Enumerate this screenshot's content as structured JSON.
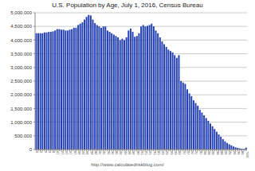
{
  "chart_data": {
    "type": "bar",
    "title": "U.S. Population by Age, July 1, 2016, Census Bureau",
    "annotations": [
      "http://www.calculatedriskblog.com/"
    ],
    "categories": [
      "0",
      null,
      "2",
      null,
      "4",
      null,
      "6",
      null,
      "8",
      null,
      "10",
      null,
      "12",
      null,
      "14",
      null,
      "16",
      null,
      "18",
      null,
      "20",
      null,
      "22",
      null,
      "24",
      null,
      "26",
      null,
      "28",
      null,
      "30",
      null,
      "32",
      null,
      "34",
      null,
      "36",
      null,
      "38",
      null,
      "40",
      null,
      "42",
      null,
      "44",
      null,
      "46",
      null,
      "48",
      null,
      "50",
      null,
      "52",
      null,
      "54",
      null,
      "56",
      null,
      "58",
      null,
      "60",
      null,
      "62",
      null,
      "64",
      null,
      "66",
      null,
      "68",
      null,
      "70",
      null,
      "72",
      null,
      "74",
      null,
      "76",
      null,
      "78",
      null,
      "80",
      null,
      "82",
      null,
      "84",
      null,
      "86",
      null,
      "88",
      null,
      "90",
      null,
      "92",
      null,
      "94",
      null,
      "96",
      null,
      "98",
      null,
      "100+"
    ],
    "values": [
      4250000,
      4250000,
      4250000,
      4250000,
      4280000,
      4280000,
      4300000,
      4300000,
      4320000,
      4350000,
      4400000,
      4400000,
      4380000,
      4380000,
      4350000,
      4350000,
      4380000,
      4400000,
      4450000,
      4450000,
      4550000,
      4600000,
      4650000,
      4750000,
      4850000,
      4920000,
      4900000,
      4750000,
      4620000,
      4550000,
      4500000,
      4450000,
      4500000,
      4500000,
      4350000,
      4300000,
      4250000,
      4200000,
      4150000,
      4100000,
      4000000,
      4050000,
      4000000,
      4100000,
      4350000,
      4420000,
      4300000,
      4120000,
      4150000,
      4250000,
      4500000,
      4550000,
      4500000,
      4520000,
      4550000,
      4600000,
      4500000,
      4350000,
      4250000,
      4100000,
      3950000,
      3850000,
      3750000,
      3650000,
      3600000,
      3550000,
      3450000,
      3350000,
      3450000,
      2500000,
      2450000,
      2400000,
      2200000,
      2050000,
      1950000,
      1800000,
      1700000,
      1600000,
      1450000,
      1350000,
      1250000,
      1150000,
      1050000,
      950000,
      850000,
      750000,
      650000,
      550000,
      470000,
      380000,
      300000,
      240000,
      190000,
      150000,
      110000,
      80000,
      60000,
      40000,
      30000,
      20000,
      70000
    ],
    "color": "#2541b2",
    "ylim": [
      0,
      5000000
    ],
    "yticks": [
      0,
      {
        "value": 500000,
        "label": "500,000"
      },
      {
        "value": 1000000,
        "label": "1,000,000"
      },
      {
        "value": 1500000,
        "label": "1,500,000"
      },
      {
        "value": 2000000,
        "label": "2,000,000"
      },
      {
        "value": 2500000,
        "label": "2,500,000"
      },
      {
        "value": 3000000,
        "label": "3,000,000"
      },
      {
        "value": 3500000,
        "label": "3,500,000"
      },
      {
        "value": 4000000,
        "label": "4,000,000"
      },
      {
        "value": 4500000,
        "label": "4,500,000"
      },
      {
        "value": 5000000,
        "label": "5,000,000"
      }
    ],
    "grid": true
  }
}
